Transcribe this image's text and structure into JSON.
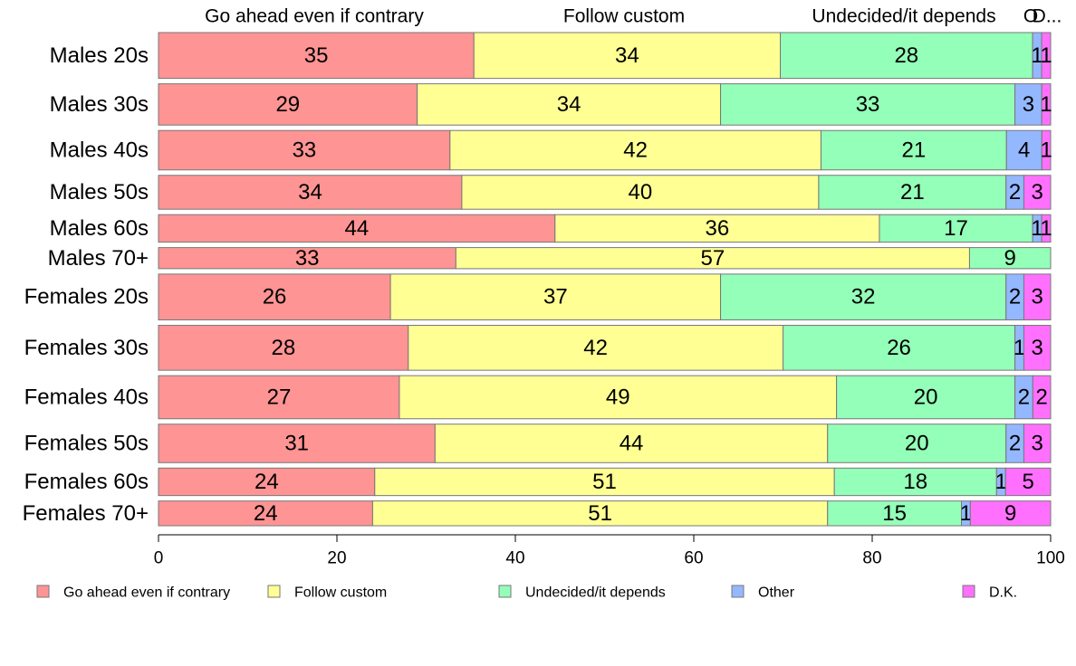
{
  "chart_data": {
    "type": "bar",
    "orientation": "horizontal",
    "stacked": true,
    "categories": [
      "Males 20s",
      "Males 30s",
      "Males 40s",
      "Males 50s",
      "Males 60s",
      "Males 70+",
      "Females 20s",
      "Females 30s",
      "Females 40s",
      "Females 50s",
      "Females 60s",
      "Females 70+"
    ],
    "group_sizes": [
      1.0,
      0.9,
      0.86,
      0.74,
      0.6,
      0.46,
      1.0,
      0.98,
      0.94,
      0.84,
      0.6,
      0.54
    ],
    "series": [
      {
        "name": "Go ahead even if contrary",
        "color": "#ff9494",
        "values": [
          35,
          29,
          33,
          34,
          44,
          33,
          26,
          28,
          27,
          31,
          24,
          24
        ]
      },
      {
        "name": "Follow custom",
        "color": "#ffff94",
        "values": [
          34,
          34,
          42,
          40,
          36,
          57,
          37,
          42,
          49,
          44,
          51,
          51
        ]
      },
      {
        "name": "Undecided/it depends",
        "color": "#94ffb8",
        "values": [
          28,
          33,
          21,
          21,
          17,
          9,
          32,
          26,
          20,
          20,
          18,
          15
        ]
      },
      {
        "name": "Other",
        "color": "#94b8ff",
        "values": [
          1,
          3,
          4,
          2,
          1,
          0,
          2,
          1,
          2,
          2,
          1,
          1
        ]
      },
      {
        "name": "D.K.",
        "color": "#ff70ff",
        "values": [
          1,
          1,
          1,
          3,
          1,
          0,
          3,
          3,
          2,
          3,
          5,
          9
        ]
      }
    ],
    "top_labels": [
      "Go ahead even if contrary",
      "Follow custom",
      "Undecided/it depends",
      "O",
      "D..."
    ],
    "xlim": [
      0,
      100
    ],
    "xticks": [
      "0",
      "20",
      "40",
      "60",
      "80",
      "100"
    ],
    "title": "",
    "xlabel": "",
    "ylabel": "",
    "grid": false,
    "legend": "bottom"
  }
}
